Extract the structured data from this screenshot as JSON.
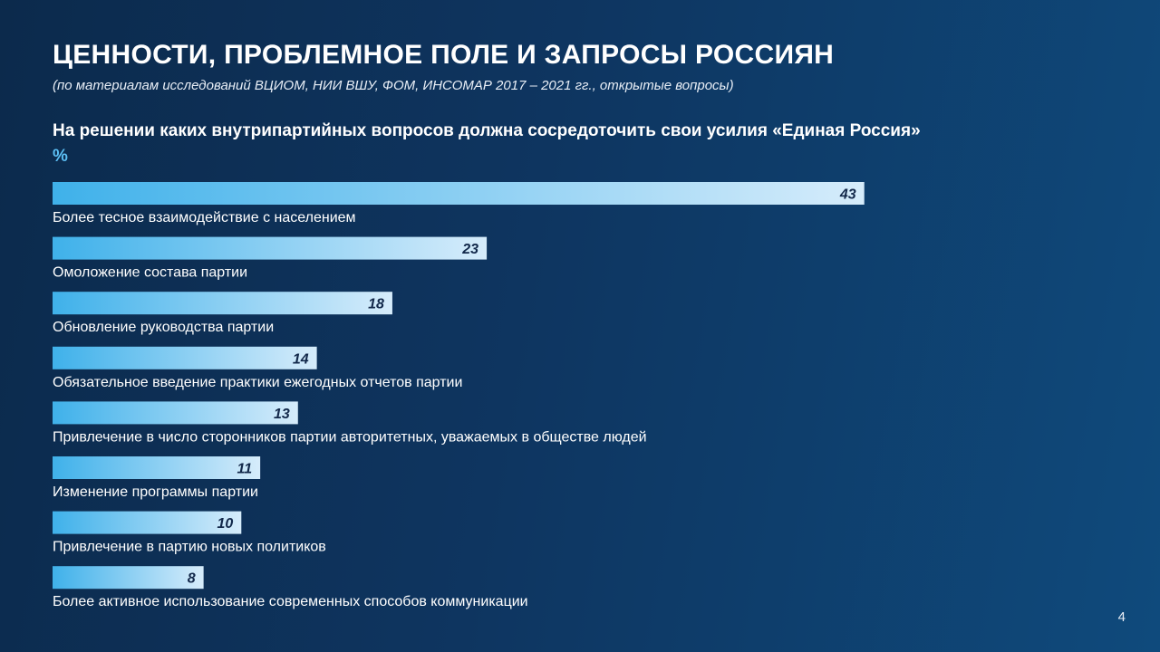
{
  "header": {
    "title": "ЦЕННОСТИ, ПРОБЛЕМНОЕ ПОЛЕ И ЗАПРОСЫ РОССИЯН",
    "subtitle": "(по материалам исследований ВЦИОМ, НИИ ВШУ, ФОМ, ИНСОМАР 2017 – 2021 гг., открытые вопросы)"
  },
  "page_number": "4",
  "colors": {
    "bar_start": "#3fb1ea",
    "bar_end": "#d6ecfb",
    "value_text": "#12284a",
    "accent": "#5cc0f5"
  },
  "chart_data": {
    "type": "bar",
    "orientation": "horizontal",
    "title": "На решении каких внутрипартийных вопросов должна сосредоточить свои усилия «Единая Россия»",
    "unit": "%",
    "categories": [
      "Более тесное взаимодействие с населением",
      "Омоложение состава партии",
      "Обновление руководства партии",
      "Обязательное введение практики ежегодных отчетов партии",
      "Привлечение в число сторонников партии авторитетных, уважаемых в обществе людей",
      "Изменение программы партии",
      "Привлечение в партию новых политиков",
      "Более активное использование современных способов коммуникации"
    ],
    "values": [
      43,
      23,
      18,
      14,
      13,
      11,
      10,
      8
    ],
    "grid": false,
    "legend": "none"
  }
}
